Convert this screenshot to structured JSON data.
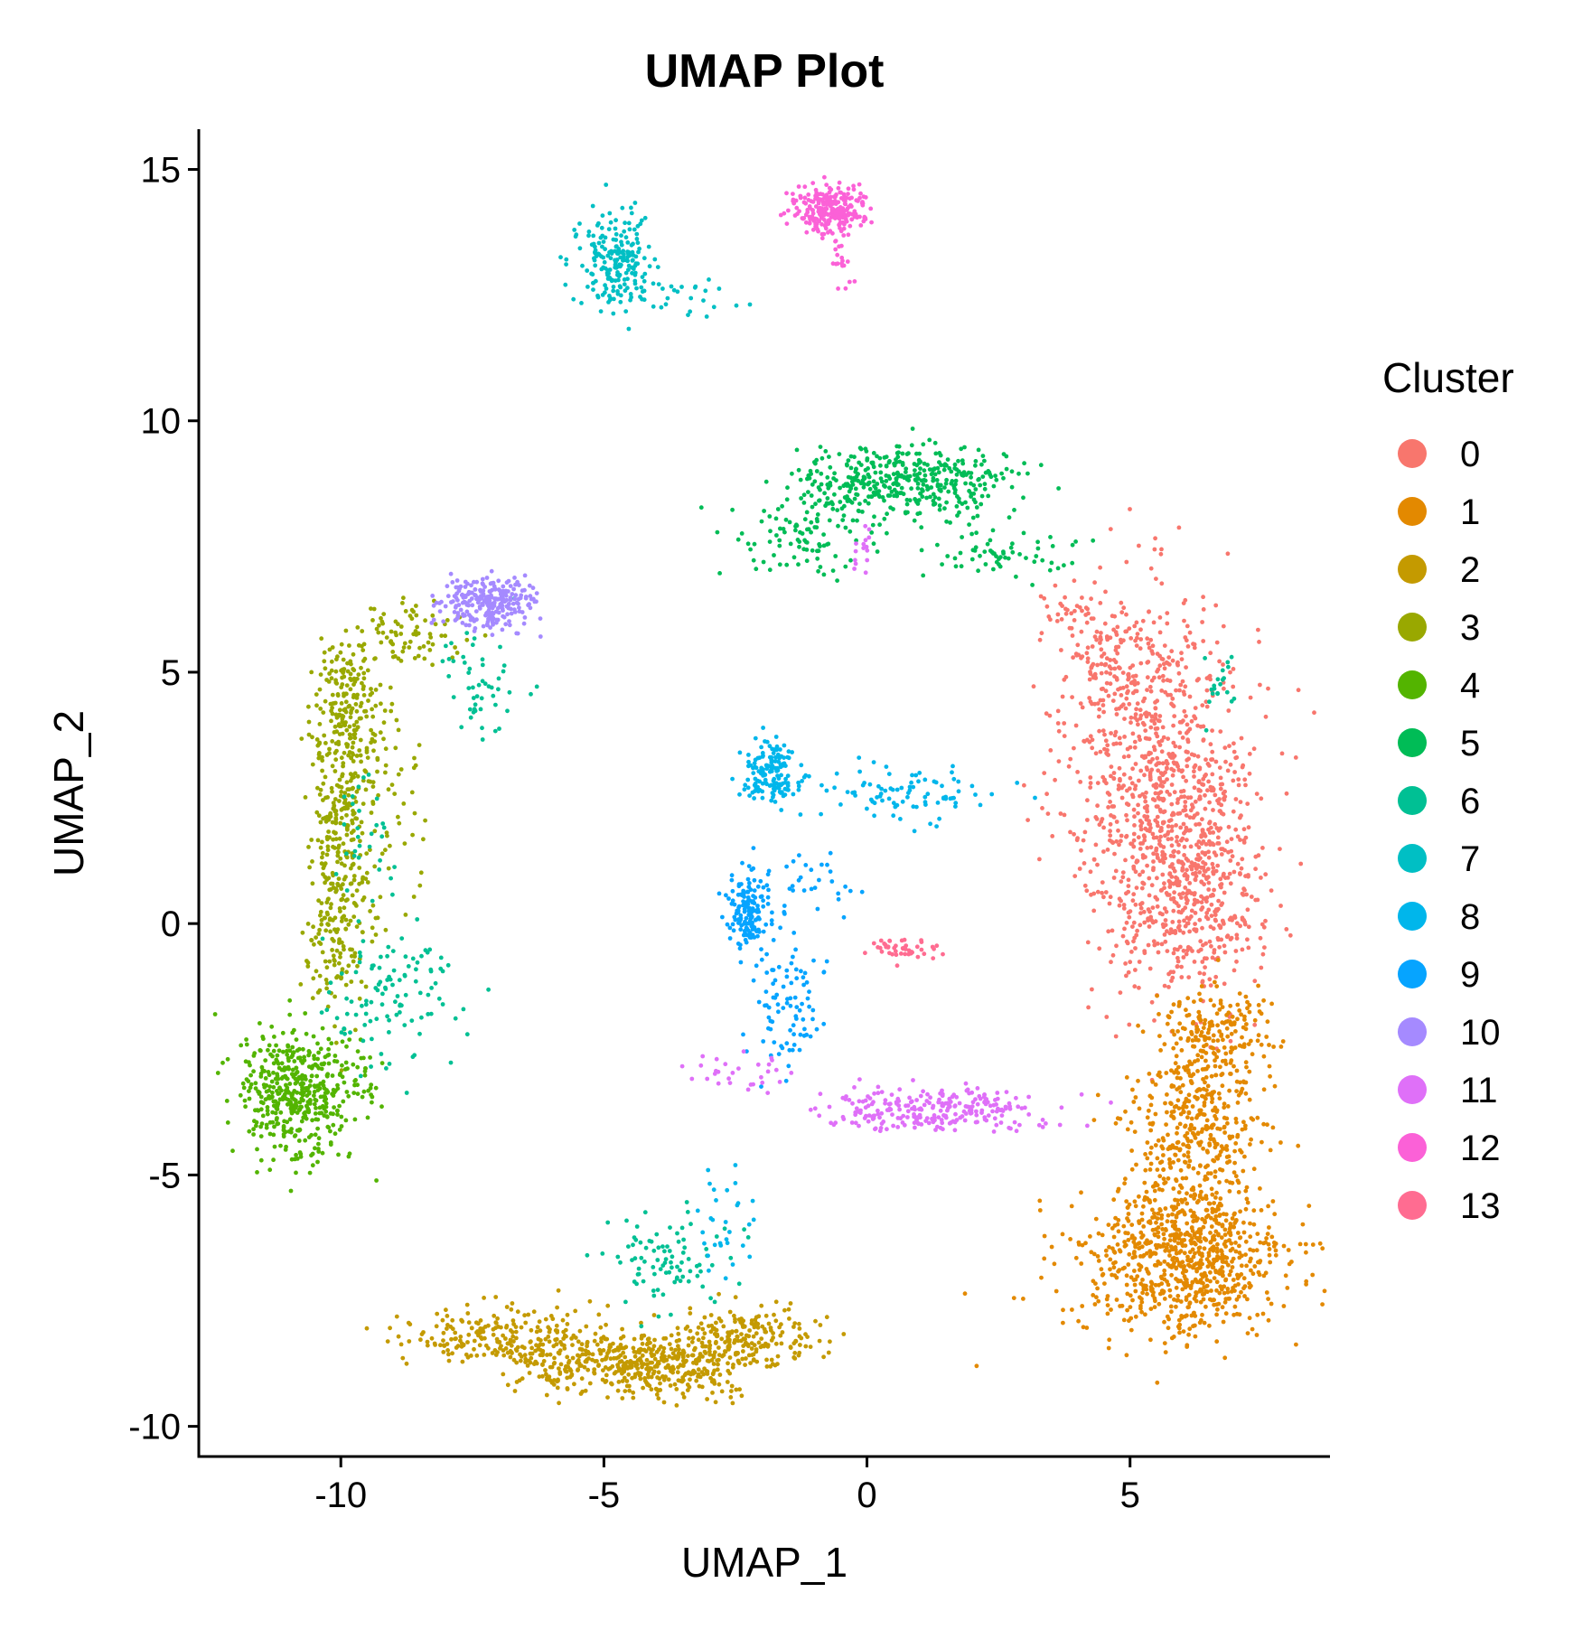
{
  "chart_data": {
    "type": "scatter",
    "title": "UMAP Plot",
    "xlabel": "UMAP_1",
    "ylabel": "UMAP_2",
    "xlim": [
      -12.7,
      8.8
    ],
    "ylim": [
      -10.6,
      15.8
    ],
    "x_ticks": [
      -10,
      -5,
      0,
      5
    ],
    "y_ticks": [
      15,
      10,
      5,
      0,
      -5,
      -10
    ],
    "x_tick_labels": [
      "-10",
      "-5",
      "0",
      "5"
    ],
    "y_tick_labels": [
      "15",
      "10",
      "5",
      "0",
      "-5",
      "-10"
    ],
    "grid": false,
    "legend_title": "Cluster",
    "legend_position": "right",
    "series": [
      {
        "name": "0",
        "color": "#F8766D",
        "regions": [
          {
            "cx": 5.6,
            "cy": 2.8,
            "sx": 0.9,
            "sy": 1.8,
            "n": 900
          },
          {
            "cx": 6.3,
            "cy": 0.5,
            "sx": 0.6,
            "sy": 1.1,
            "n": 350
          },
          {
            "cx": 4.6,
            "cy": 5.2,
            "sx": 0.5,
            "sy": 0.6,
            "n": 120
          },
          {
            "cx": 3.9,
            "cy": 6.2,
            "sx": 0.3,
            "sy": 0.3,
            "n": 25
          }
        ]
      },
      {
        "name": "1",
        "color": "#E38900",
        "regions": [
          {
            "cx": 6.0,
            "cy": -6.7,
            "sx": 1.0,
            "sy": 0.75,
            "n": 800
          },
          {
            "cx": 6.3,
            "cy": -4.0,
            "sx": 0.6,
            "sy": 1.0,
            "n": 450
          },
          {
            "cx": 6.6,
            "cy": -2.1,
            "sx": 0.5,
            "sy": 0.5,
            "n": 150
          }
        ]
      },
      {
        "name": "2",
        "color": "#C49A00",
        "regions": [
          {
            "cx": -7.0,
            "cy": -8.2,
            "sx": 0.9,
            "sy": 0.3,
            "n": 200
          },
          {
            "cx": -5.2,
            "cy": -8.7,
            "sx": 0.8,
            "sy": 0.3,
            "n": 250
          },
          {
            "cx": -3.6,
            "cy": -8.8,
            "sx": 0.8,
            "sy": 0.3,
            "n": 250
          },
          {
            "cx": -2.3,
            "cy": -8.2,
            "sx": 0.7,
            "sy": 0.3,
            "n": 200
          }
        ]
      },
      {
        "name": "3",
        "color": "#99A800",
        "regions": [
          {
            "cx": -9.8,
            "cy": 4.4,
            "sx": 0.35,
            "sy": 0.6,
            "n": 180
          },
          {
            "cx": -10.0,
            "cy": 2.2,
            "sx": 0.3,
            "sy": 1.0,
            "n": 220
          },
          {
            "cx": -10.1,
            "cy": -0.2,
            "sx": 0.3,
            "sy": 0.8,
            "n": 150
          },
          {
            "cx": -8.8,
            "cy": 5.7,
            "sx": 0.5,
            "sy": 0.3,
            "n": 80
          },
          {
            "cx": -9.1,
            "cy": 2.5,
            "sx": 0.4,
            "sy": 1.2,
            "n": 60
          }
        ]
      },
      {
        "name": "4",
        "color": "#53B400",
        "regions": [
          {
            "cx": -10.9,
            "cy": -3.4,
            "sx": 0.5,
            "sy": 0.65,
            "n": 420
          },
          {
            "cx": -9.9,
            "cy": -3.2,
            "sx": 0.4,
            "sy": 0.4,
            "n": 60
          }
        ]
      },
      {
        "name": "5",
        "color": "#00BC56",
        "regions": [
          {
            "cx": 0.7,
            "cy": 8.8,
            "sx": 1.0,
            "sy": 0.35,
            "n": 420
          },
          {
            "cx": -1.2,
            "cy": 7.7,
            "sx": 0.8,
            "sy": 0.4,
            "n": 100
          },
          {
            "cx": 2.6,
            "cy": 7.3,
            "sx": 0.7,
            "sy": 0.3,
            "n": 60
          }
        ]
      },
      {
        "name": "6",
        "color": "#00C094",
        "regions": [
          {
            "cx": -3.8,
            "cy": -6.7,
            "sx": 0.6,
            "sy": 0.5,
            "n": 90
          },
          {
            "cx": -9.2,
            "cy": -1.5,
            "sx": 0.7,
            "sy": 0.7,
            "n": 110
          },
          {
            "cx": -7.3,
            "cy": 4.7,
            "sx": 0.4,
            "sy": 0.5,
            "n": 50
          },
          {
            "cx": -9.5,
            "cy": 1.7,
            "sx": 0.3,
            "sy": 0.8,
            "n": 30
          },
          {
            "cx": 6.7,
            "cy": 4.8,
            "sx": 0.2,
            "sy": 0.3,
            "n": 20
          }
        ]
      },
      {
        "name": "7",
        "color": "#00BFC4",
        "regions": [
          {
            "cx": -4.8,
            "cy": 13.1,
            "sx": 0.35,
            "sy": 0.5,
            "n": 210
          },
          {
            "cx": -3.4,
            "cy": 12.4,
            "sx": 0.4,
            "sy": 0.25,
            "n": 20
          }
        ]
      },
      {
        "name": "8",
        "color": "#00B6EB",
        "regions": [
          {
            "cx": -1.8,
            "cy": 3.0,
            "sx": 0.3,
            "sy": 0.3,
            "n": 150
          },
          {
            "cx": 0.7,
            "cy": 2.6,
            "sx": 0.9,
            "sy": 0.3,
            "n": 90
          },
          {
            "cx": -2.7,
            "cy": -6.0,
            "sx": 0.3,
            "sy": 0.5,
            "n": 30
          }
        ]
      },
      {
        "name": "9",
        "color": "#06A4FF",
        "regions": [
          {
            "cx": -2.3,
            "cy": 0.2,
            "sx": 0.2,
            "sy": 0.4,
            "n": 150
          },
          {
            "cx": -1.5,
            "cy": -1.6,
            "sx": 0.35,
            "sy": 0.6,
            "n": 90
          },
          {
            "cx": -1.0,
            "cy": 0.8,
            "sx": 0.6,
            "sy": 0.3,
            "n": 30
          }
        ]
      },
      {
        "name": "10",
        "color": "#A58AFF",
        "regions": [
          {
            "cx": -7.2,
            "cy": 6.4,
            "sx": 0.45,
            "sy": 0.25,
            "n": 260
          }
        ]
      },
      {
        "name": "11",
        "color": "#DF70F8",
        "regions": [
          {
            "cx": 1.2,
            "cy": -3.7,
            "sx": 1.1,
            "sy": 0.2,
            "n": 260
          },
          {
            "cx": -2.5,
            "cy": -2.9,
            "sx": 0.5,
            "sy": 0.2,
            "n": 30
          },
          {
            "cx": -0.1,
            "cy": 7.5,
            "sx": 0.1,
            "sy": 0.3,
            "n": 15
          }
        ]
      },
      {
        "name": "12",
        "color": "#FB61D7",
        "regions": [
          {
            "cx": -0.7,
            "cy": 14.2,
            "sx": 0.35,
            "sy": 0.22,
            "n": 250
          },
          {
            "cx": -0.5,
            "cy": 13.3,
            "sx": 0.08,
            "sy": 0.3,
            "n": 25
          }
        ]
      },
      {
        "name": "13",
        "color": "#FF6C91",
        "regions": [
          {
            "cx": 0.7,
            "cy": -0.5,
            "sx": 0.3,
            "sy": 0.12,
            "n": 45
          }
        ]
      }
    ]
  }
}
